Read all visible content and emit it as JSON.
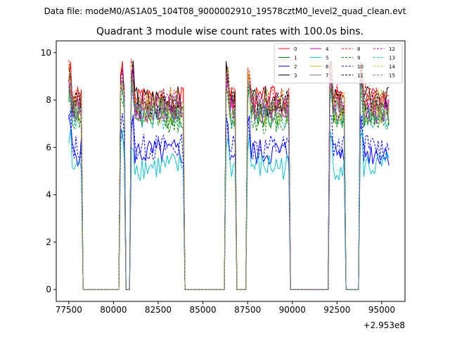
{
  "header": {
    "data_file": "Data file: modeM0/AS1A05_104T08_9000002910_19578cztM0_level2_quad_clean.evt"
  },
  "chart_data": {
    "type": "line",
    "title": "Quadrant 3 module wise count rates with 100.0s bins.",
    "xlabel": "",
    "ylabel": "",
    "x_offset_label": "+2.953e8",
    "xlim": [
      76800,
      96300
    ],
    "ylim": [
      -0.5,
      10.5
    ],
    "x_ticks": [
      77500,
      80000,
      82500,
      85000,
      87500,
      90000,
      92500,
      95000
    ],
    "x_tick_labels": [
      "77500",
      "80000",
      "82500",
      "85000",
      "87500",
      "90000",
      "92500",
      "95000"
    ],
    "y_ticks": [
      0,
      2,
      4,
      6,
      8,
      10
    ],
    "y_tick_labels": [
      "0",
      "2",
      "4",
      "6",
      "8",
      "10"
    ],
    "grid": false,
    "legend_placement": "top-right",
    "bin_width": 100,
    "x_start": 77500,
    "x_end": 95400,
    "active_segments": [
      [
        77500,
        78200
      ],
      [
        80400,
        80600
      ],
      [
        81000,
        83900
      ],
      [
        86300,
        86800
      ],
      [
        87500,
        89800
      ],
      [
        92100,
        92900
      ],
      [
        93800,
        95400
      ]
    ],
    "series": [
      {
        "name": "0",
        "color": "#ff0000",
        "dash": "solid",
        "level": 8.0
      },
      {
        "name": "1",
        "color": "#008000",
        "dash": "solid",
        "level": 7.4
      },
      {
        "name": "2",
        "color": "#0000ff",
        "dash": "solid",
        "level": 5.8
      },
      {
        "name": "3",
        "color": "#000000",
        "dash": "solid",
        "level": 8.0
      },
      {
        "name": "4",
        "color": "#bf00bf",
        "dash": "solid",
        "level": 7.6
      },
      {
        "name": "5",
        "color": "#17becf",
        "dash": "solid",
        "level": 5.2
      },
      {
        "name": "6",
        "color": "#bcbd22",
        "dash": "solid",
        "level": 7.5
      },
      {
        "name": "7",
        "color": "#7f7f7f",
        "dash": "solid",
        "level": 7.7
      },
      {
        "name": "8",
        "color": "#ff0000",
        "dash": "dashed",
        "level": 8.1
      },
      {
        "name": "9",
        "color": "#008000",
        "dash": "dashed",
        "level": 7.2
      },
      {
        "name": "10",
        "color": "#0000ff",
        "dash": "dashed",
        "level": 6.0
      },
      {
        "name": "11",
        "color": "#000000",
        "dash": "dashed",
        "level": 7.8
      },
      {
        "name": "12",
        "color": "#bf00bf",
        "dash": "dashed",
        "level": 7.7
      },
      {
        "name": "13",
        "color": "#17becf",
        "dash": "dashed",
        "level": 7.3
      },
      {
        "name": "14",
        "color": "#bcbd22",
        "dash": "dashed",
        "level": 7.9
      },
      {
        "name": "15",
        "color": "#7f7f7f",
        "dash": "dashed",
        "level": 7.6
      }
    ]
  }
}
